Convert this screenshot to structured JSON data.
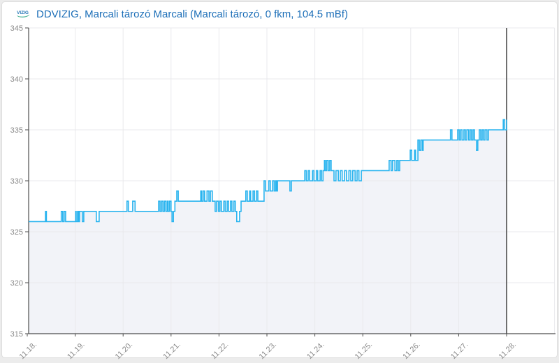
{
  "header": {
    "logo_text": "VIZIG",
    "title": "DDVIZIG, Marcali tározó Marcali (Marcali tározó, 0 fkm, 104.5 mBf)"
  },
  "colors": {
    "title_text": "#1d6fb8",
    "series_line": "#29b4ef",
    "series_fill": "#f2f3f8",
    "grid": "#e9e9ec",
    "axis": "#4d4d4d",
    "now_line": "#4d4d4d",
    "tick_label": "#8a8a8a",
    "logo_blue": "#2a7ab8",
    "logo_green": "#3fae8f",
    "card_border": "#dcdcdc",
    "page_bg": "#ececec"
  },
  "chart_data": {
    "type": "line",
    "line_style": "step-after",
    "title": "DDVIZIG, Marcali tározó Marcali (Marcali tározó, 0 fkm, 104.5 mBf)",
    "station": "Marcali tározó Marcali",
    "grid": true,
    "legend": false,
    "ylim": [
      315,
      345
    ],
    "y_ticks": [
      315,
      320,
      325,
      330,
      335,
      340,
      345
    ],
    "x_tick_labels": [
      "11.18.",
      "11.19.",
      "11.20.",
      "11.21.",
      "11.22.",
      "11.23.",
      "11.24.",
      "11.25.",
      "11.26.",
      "11.27.",
      "11.28."
    ],
    "x_range_days": [
      0,
      11
    ],
    "data_end_day": 10,
    "points_format": "[day offset from 11.18, water level]",
    "points": [
      [
        0.03,
        326
      ],
      [
        0.38,
        327
      ],
      [
        0.4,
        326
      ],
      [
        0.71,
        327
      ],
      [
        0.74,
        326
      ],
      [
        0.77,
        327
      ],
      [
        0.8,
        326
      ],
      [
        1.01,
        327
      ],
      [
        1.02,
        326
      ],
      [
        1.05,
        327
      ],
      [
        1.07,
        326
      ],
      [
        1.09,
        327
      ],
      [
        1.15,
        326
      ],
      [
        1.18,
        327
      ],
      [
        1.44,
        326
      ],
      [
        1.5,
        327
      ],
      [
        2.08,
        328
      ],
      [
        2.11,
        327
      ],
      [
        2.2,
        328
      ],
      [
        2.25,
        327
      ],
      [
        2.74,
        328
      ],
      [
        2.77,
        327
      ],
      [
        2.8,
        328
      ],
      [
        2.83,
        327
      ],
      [
        2.86,
        328
      ],
      [
        2.89,
        327
      ],
      [
        2.92,
        328
      ],
      [
        2.94,
        327
      ],
      [
        2.97,
        328
      ],
      [
        3.0,
        327
      ],
      [
        3.02,
        326
      ],
      [
        3.05,
        327
      ],
      [
        3.08,
        328
      ],
      [
        3.12,
        329
      ],
      [
        3.15,
        328
      ],
      [
        3.62,
        329
      ],
      [
        3.64,
        328
      ],
      [
        3.67,
        329
      ],
      [
        3.7,
        328
      ],
      [
        3.75,
        329
      ],
      [
        3.79,
        328
      ],
      [
        3.82,
        329
      ],
      [
        3.86,
        328
      ],
      [
        3.92,
        327
      ],
      [
        3.95,
        328
      ],
      [
        3.99,
        327
      ],
      [
        4.02,
        328
      ],
      [
        4.05,
        327
      ],
      [
        4.1,
        328
      ],
      [
        4.13,
        327
      ],
      [
        4.17,
        328
      ],
      [
        4.2,
        327
      ],
      [
        4.24,
        328
      ],
      [
        4.27,
        327
      ],
      [
        4.31,
        328
      ],
      [
        4.34,
        327
      ],
      [
        4.37,
        326
      ],
      [
        4.43,
        327
      ],
      [
        4.46,
        328
      ],
      [
        4.56,
        329
      ],
      [
        4.59,
        328
      ],
      [
        4.64,
        329
      ],
      [
        4.66,
        328
      ],
      [
        4.71,
        329
      ],
      [
        4.74,
        328
      ],
      [
        4.78,
        329
      ],
      [
        4.81,
        328
      ],
      [
        4.94,
        330
      ],
      [
        4.97,
        329
      ],
      [
        5.04,
        330
      ],
      [
        5.07,
        329
      ],
      [
        5.12,
        330
      ],
      [
        5.15,
        329
      ],
      [
        5.18,
        330
      ],
      [
        5.2,
        329
      ],
      [
        5.22,
        330
      ],
      [
        5.48,
        329
      ],
      [
        5.51,
        330
      ],
      [
        5.79,
        331
      ],
      [
        5.82,
        330
      ],
      [
        5.86,
        331
      ],
      [
        5.89,
        330
      ],
      [
        5.95,
        331
      ],
      [
        5.98,
        330
      ],
      [
        6.03,
        331
      ],
      [
        6.06,
        330
      ],
      [
        6.11,
        331
      ],
      [
        6.14,
        330
      ],
      [
        6.17,
        331
      ],
      [
        6.2,
        332
      ],
      [
        6.22,
        331
      ],
      [
        6.25,
        332
      ],
      [
        6.28,
        331
      ],
      [
        6.31,
        332
      ],
      [
        6.34,
        331
      ],
      [
        6.4,
        330
      ],
      [
        6.44,
        331
      ],
      [
        6.49,
        330
      ],
      [
        6.53,
        331
      ],
      [
        6.57,
        330
      ],
      [
        6.62,
        331
      ],
      [
        6.66,
        330
      ],
      [
        6.71,
        331
      ],
      [
        6.75,
        330
      ],
      [
        6.79,
        331
      ],
      [
        6.84,
        330
      ],
      [
        6.88,
        331
      ],
      [
        6.92,
        330
      ],
      [
        6.97,
        331
      ],
      [
        7.55,
        332
      ],
      [
        7.59,
        331
      ],
      [
        7.62,
        332
      ],
      [
        7.67,
        331
      ],
      [
        7.71,
        332
      ],
      [
        7.74,
        331
      ],
      [
        7.77,
        332
      ],
      [
        7.99,
        333
      ],
      [
        8.02,
        332
      ],
      [
        8.08,
        333
      ],
      [
        8.1,
        332
      ],
      [
        8.15,
        334
      ],
      [
        8.18,
        333
      ],
      [
        8.21,
        334
      ],
      [
        8.24,
        333
      ],
      [
        8.26,
        334
      ],
      [
        8.83,
        335
      ],
      [
        8.86,
        334
      ],
      [
        8.98,
        335
      ],
      [
        9.01,
        334
      ],
      [
        9.04,
        335
      ],
      [
        9.07,
        334
      ],
      [
        9.11,
        335
      ],
      [
        9.14,
        334
      ],
      [
        9.17,
        335
      ],
      [
        9.21,
        334
      ],
      [
        9.24,
        335
      ],
      [
        9.27,
        334
      ],
      [
        9.3,
        335
      ],
      [
        9.33,
        334
      ],
      [
        9.37,
        333
      ],
      [
        9.4,
        334
      ],
      [
        9.43,
        335
      ],
      [
        9.46,
        334
      ],
      [
        9.49,
        335
      ],
      [
        9.52,
        334
      ],
      [
        9.55,
        335
      ],
      [
        9.59,
        334
      ],
      [
        9.62,
        335
      ],
      [
        9.68,
        335
      ],
      [
        9.93,
        336
      ],
      [
        9.96,
        335
      ],
      [
        10.0,
        336
      ]
    ]
  }
}
